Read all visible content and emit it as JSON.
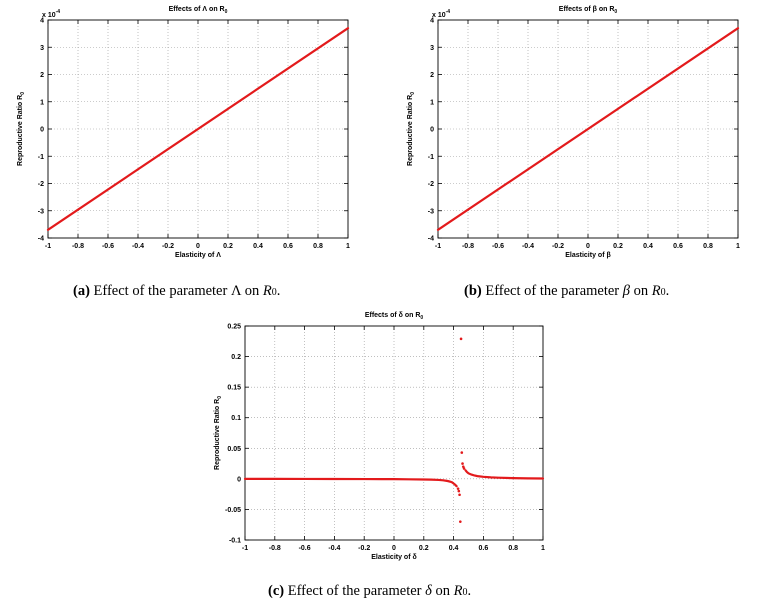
{
  "captions": {
    "a": {
      "label": "(a)",
      "text": "Effect of the parameter Λ on ",
      "sym": "R",
      "sub": "0",
      "end": "."
    },
    "b": {
      "label": "(b)",
      "text": "Effect of the parameter ",
      "param": "β",
      "mid": " on ",
      "sym": "R",
      "sub": "0",
      "end": "."
    },
    "c": {
      "label": "(c)",
      "text": "Effect of the parameter ",
      "param": "δ",
      "mid": " on ",
      "sym": "R",
      "sub": "0",
      "end": "."
    }
  },
  "chart_data": [
    {
      "id": "a",
      "type": "line",
      "title": "Effects of Λ on R",
      "title_sub": "0",
      "xlabel": "Elasticity of Λ",
      "ylabel": "Reproductive Ratio R",
      "ylabel_sub": "0",
      "xlim": [
        -1,
        1
      ],
      "ylim": [
        -4,
        4
      ],
      "y_multiplier": "x 10",
      "y_multiplier_exp": "-4",
      "x_ticks": [
        -1,
        -0.8,
        -0.6,
        -0.4,
        -0.2,
        0,
        0.2,
        0.4,
        0.6,
        0.8,
        1
      ],
      "x_tick_labels": [
        "-1",
        "-0.8",
        "-0.6",
        "-0.4",
        "-0.2",
        "0",
        "0.2",
        "0.4",
        "0.6",
        "0.8",
        "1"
      ],
      "y_ticks": [
        -4,
        -3,
        -2,
        -1,
        0,
        1,
        2,
        3,
        4
      ],
      "y_tick_labels": [
        "-4",
        "-3",
        "-2",
        "-1",
        "0",
        "1",
        "2",
        "3",
        "4"
      ],
      "grid": true,
      "color": "#e31a1c",
      "series": [
        {
          "x": [
            -1,
            1
          ],
          "y": [
            -3.7,
            3.7
          ]
        }
      ]
    },
    {
      "id": "b",
      "type": "line",
      "title": "Effects of β on R",
      "title_sub": "0",
      "xlabel": "Elasticity of β",
      "ylabel": "Reproductive Ratio R",
      "ylabel_sub": "0",
      "xlim": [
        -1,
        1
      ],
      "ylim": [
        -4,
        4
      ],
      "y_multiplier": "x 10",
      "y_multiplier_exp": "-4",
      "x_ticks": [
        -1,
        -0.8,
        -0.6,
        -0.4,
        -0.2,
        0,
        0.2,
        0.4,
        0.6,
        0.8,
        1
      ],
      "x_tick_labels": [
        "-1",
        "-0.8",
        "-0.6",
        "-0.4",
        "-0.2",
        "0",
        "0.2",
        "0.4",
        "0.6",
        "0.8",
        "1"
      ],
      "y_ticks": [
        -4,
        -3,
        -2,
        -1,
        0,
        1,
        2,
        3,
        4
      ],
      "y_tick_labels": [
        "-4",
        "-3",
        "-2",
        "-1",
        "0",
        "1",
        "2",
        "3",
        "4"
      ],
      "grid": true,
      "color": "#e31a1c",
      "series": [
        {
          "x": [
            -1,
            1
          ],
          "y": [
            -3.7,
            3.7
          ]
        }
      ]
    },
    {
      "id": "c",
      "type": "line",
      "title": "Effects of δ on R",
      "title_sub": "0",
      "xlabel": "Elasticity of δ",
      "ylabel": "Reproductive Ratio R",
      "ylabel_sub": "0",
      "xlim": [
        -1,
        1
      ],
      "ylim": [
        -0.1,
        0.25
      ],
      "x_ticks": [
        -1,
        -0.8,
        -0.6,
        -0.4,
        -0.2,
        0,
        0.2,
        0.4,
        0.6,
        0.8,
        1
      ],
      "x_tick_labels": [
        "-1",
        "-0.8",
        "-0.6",
        "-0.4",
        "-0.2",
        "0",
        "0.2",
        "0.4",
        "0.6",
        "0.8",
        "1"
      ],
      "y_ticks": [
        -0.1,
        -0.05,
        0,
        0.05,
        0.1,
        0.15,
        0.2,
        0.25
      ],
      "y_tick_labels": [
        "-0.1",
        "-0.05",
        "0",
        "0.05",
        "0.1",
        "0.15",
        "0.2",
        "0.25"
      ],
      "grid": true,
      "color": "#e31a1c",
      "series": [
        {
          "x": [
            -1,
            -0.8,
            -0.6,
            -0.4,
            -0.2,
            0,
            0.1,
            0.2,
            0.25,
            0.3,
            0.33,
            0.36,
            0.38,
            0.39,
            0.4,
            0.41,
            0.42
          ],
          "y": [
            0,
            0,
            -0.0001,
            -0.0002,
            -0.0003,
            -0.0005,
            -0.0007,
            -0.001,
            -0.0013,
            -0.0018,
            -0.0024,
            -0.0035,
            -0.0048,
            -0.0058,
            -0.0075,
            -0.0095,
            -0.012
          ]
        },
        {
          "x": [
            0.48,
            0.49,
            0.5,
            0.52,
            0.54,
            0.56,
            0.6,
            0.65,
            0.7,
            0.8,
            0.9,
            1
          ],
          "y": [
            0.014,
            0.011,
            0.009,
            0.007,
            0.0055,
            0.0045,
            0.0033,
            0.0024,
            0.0019,
            0.0012,
            0.0008,
            0.0006
          ]
        }
      ],
      "scatter": {
        "x": [
          0.43,
          0.435,
          0.44,
          0.445,
          0.45,
          0.455,
          0.46,
          0.465,
          0.47
        ],
        "y": [
          -0.016,
          -0.02,
          -0.026,
          -0.07,
          0.229,
          0.043,
          0.025,
          0.02,
          0.017
        ]
      }
    }
  ]
}
